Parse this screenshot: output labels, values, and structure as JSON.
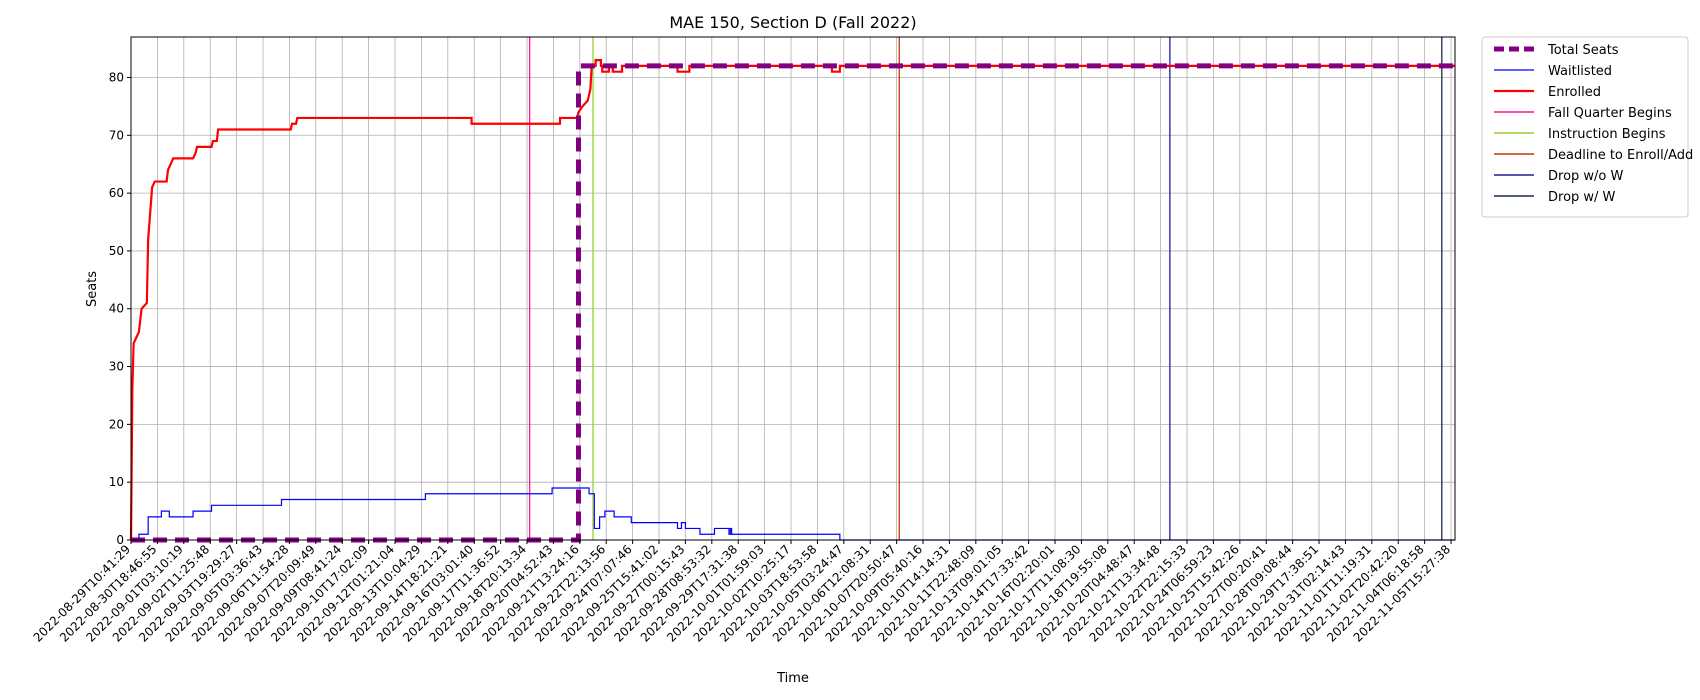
{
  "chart_data": {
    "type": "line",
    "title": "MAE 150, Section D (Fall 2022)",
    "xlabel": "Time",
    "ylabel": "Seats",
    "ylim": [
      0,
      87
    ],
    "yticks": [
      0,
      10,
      20,
      30,
      40,
      50,
      60,
      70,
      80
    ],
    "x_ticks": [
      "2022-08-29T10:41:29",
      "2022-08-30T18:46:55",
      "2022-09-01T03:10:19",
      "2022-09-02T11:25:48",
      "2022-09-03T19:29:27",
      "2022-09-05T03:36:43",
      "2022-09-06T11:54:28",
      "2022-09-07T20:09:49",
      "2022-09-09T08:41:24",
      "2022-09-10T17:02:09",
      "2022-09-12T01:21:04",
      "2022-09-13T10:04:29",
      "2022-09-14T18:21:21",
      "2022-09-16T03:01:40",
      "2022-09-17T11:36:52",
      "2022-09-18T20:13:34",
      "2022-09-20T04:52:43",
      "2022-09-21T13:24:16",
      "2022-09-22T22:13:56",
      "2022-09-24T07:07:46",
      "2022-09-25T15:41:02",
      "2022-09-27T00:15:43",
      "2022-09-28T08:53:32",
      "2022-09-29T17:31:38",
      "2022-10-01T01:59:03",
      "2022-10-02T10:25:17",
      "2022-10-03T18:53:58",
      "2022-10-05T03:24:47",
      "2022-10-06T12:08:31",
      "2022-10-07T20:50:47",
      "2022-10-09T05:40:16",
      "2022-10-10T14:14:31",
      "2022-10-11T22:48:09",
      "2022-10-13T09:01:05",
      "2022-10-14T17:33:42",
      "2022-10-16T02:20:01",
      "2022-10-17T11:08:30",
      "2022-10-18T19:55:08",
      "2022-10-20T04:48:47",
      "2022-10-21T13:34:48",
      "2022-10-22T22:15:33",
      "2022-10-24T06:59:23",
      "2022-10-25T15:42:26",
      "2022-10-27T00:20:41",
      "2022-10-28T09:08:44",
      "2022-10-29T17:38:51",
      "2022-10-31T02:14:43",
      "2022-11-01T11:19:31",
      "2022-11-02T20:42:20",
      "2022-11-04T06:18:58",
      "2022-11-05T15:27:38"
    ],
    "x_domain": [
      0,
      50.15
    ],
    "legend_position": "outside-top-right",
    "grid": true,
    "series": [
      {
        "name": "Total Seats",
        "color": "#800080",
        "style": "dashed-thick",
        "points": [
          [
            0,
            0
          ],
          [
            16.95,
            0
          ],
          [
            16.95,
            82
          ],
          [
            50.15,
            82
          ]
        ]
      },
      {
        "name": "Waitlisted",
        "color": "#0000ff",
        "style": "thin",
        "points": [
          [
            0,
            0
          ],
          [
            0.3,
            0
          ],
          [
            0.3,
            1
          ],
          [
            0.65,
            1
          ],
          [
            0.65,
            4
          ],
          [
            1.15,
            4
          ],
          [
            1.15,
            5
          ],
          [
            1.45,
            5
          ],
          [
            1.45,
            4
          ],
          [
            2.35,
            4
          ],
          [
            2.35,
            5
          ],
          [
            3.05,
            5
          ],
          [
            3.05,
            6
          ],
          [
            5.7,
            6
          ],
          [
            5.7,
            7
          ],
          [
            11.15,
            7
          ],
          [
            11.15,
            8
          ],
          [
            15.95,
            8
          ],
          [
            15.95,
            9
          ],
          [
            17.35,
            9
          ],
          [
            17.35,
            8
          ],
          [
            17.55,
            8
          ],
          [
            17.55,
            2
          ],
          [
            17.75,
            2
          ],
          [
            17.75,
            4
          ],
          [
            17.95,
            4
          ],
          [
            17.95,
            5
          ],
          [
            18.3,
            5
          ],
          [
            18.3,
            4
          ],
          [
            18.95,
            4
          ],
          [
            18.95,
            3
          ],
          [
            20.7,
            3
          ],
          [
            20.7,
            2
          ],
          [
            20.85,
            2
          ],
          [
            20.85,
            3
          ],
          [
            21.0,
            3
          ],
          [
            21.0,
            2
          ],
          [
            21.55,
            2
          ],
          [
            21.55,
            1
          ],
          [
            22.1,
            1
          ],
          [
            22.1,
            2
          ],
          [
            22.65,
            2
          ],
          [
            22.65,
            1
          ],
          [
            22.7,
            1
          ],
          [
            22.7,
            2
          ],
          [
            22.75,
            2
          ],
          [
            22.75,
            1
          ],
          [
            26.85,
            1
          ],
          [
            26.85,
            0
          ],
          [
            50.15,
            0
          ]
        ]
      },
      {
        "name": "Enrolled",
        "color": "#ff0000",
        "style": "thick",
        "points": [
          [
            0,
            0
          ],
          [
            0.02,
            10
          ],
          [
            0.05,
            26
          ],
          [
            0.1,
            34
          ],
          [
            0.2,
            35
          ],
          [
            0.3,
            36
          ],
          [
            0.4,
            40
          ],
          [
            0.6,
            41
          ],
          [
            0.65,
            52
          ],
          [
            0.75,
            58
          ],
          [
            0.8,
            61
          ],
          [
            0.9,
            62
          ],
          [
            1.35,
            62
          ],
          [
            1.4,
            64
          ],
          [
            1.5,
            65
          ],
          [
            1.6,
            66
          ],
          [
            2.35,
            66
          ],
          [
            2.45,
            67
          ],
          [
            2.5,
            68
          ],
          [
            3.05,
            68
          ],
          [
            3.1,
            69
          ],
          [
            3.25,
            69
          ],
          [
            3.3,
            71
          ],
          [
            6.05,
            71
          ],
          [
            6.1,
            72
          ],
          [
            6.25,
            72
          ],
          [
            6.3,
            73
          ],
          [
            12.9,
            73
          ],
          [
            12.9,
            72
          ],
          [
            16.25,
            72
          ],
          [
            16.25,
            73
          ],
          [
            16.7,
            73
          ],
          [
            16.7,
            73
          ],
          [
            16.9,
            73
          ],
          [
            16.95,
            74
          ],
          [
            17.1,
            75
          ],
          [
            17.3,
            76
          ],
          [
            17.4,
            78
          ],
          [
            17.45,
            82
          ],
          [
            17.6,
            82
          ],
          [
            17.6,
            83
          ],
          [
            17.8,
            83
          ],
          [
            17.8,
            82
          ],
          [
            17.85,
            82
          ],
          [
            17.85,
            81
          ],
          [
            18.1,
            81
          ],
          [
            18.1,
            82
          ],
          [
            18.25,
            82
          ],
          [
            18.25,
            81
          ],
          [
            18.6,
            81
          ],
          [
            18.6,
            82
          ],
          [
            20.7,
            82
          ],
          [
            20.7,
            81
          ],
          [
            21.15,
            81
          ],
          [
            21.15,
            82
          ],
          [
            26.55,
            82
          ],
          [
            26.55,
            81
          ],
          [
            26.85,
            81
          ],
          [
            26.85,
            82
          ],
          [
            50.15,
            82
          ]
        ]
      }
    ],
    "events": [
      {
        "name": "Fall Quarter Begins",
        "x": 15.1,
        "color": "#ff1493"
      },
      {
        "name": "Instruction Begins",
        "x": 17.5,
        "color": "#9acd32"
      },
      {
        "name": "Deadline to Enroll/Add",
        "x": 29.1,
        "color": "#cc3300"
      },
      {
        "name": "Drop w/o W",
        "x": 39.35,
        "color": "#1e1e99"
      },
      {
        "name": "Drop w/ W",
        "x": 49.65,
        "color": "#1a2a4a"
      }
    ]
  }
}
